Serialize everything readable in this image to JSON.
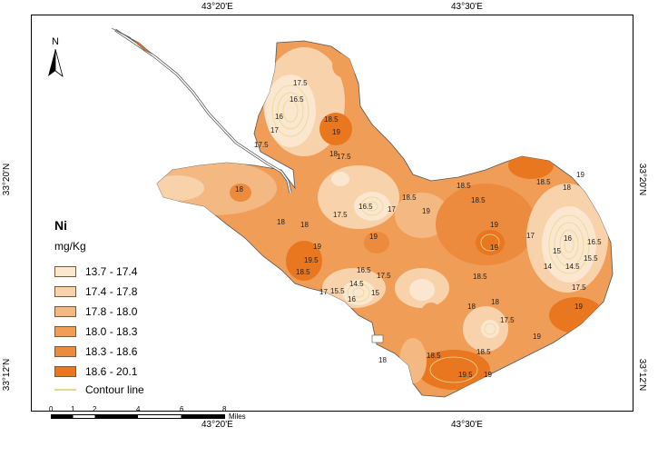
{
  "coords": {
    "top": [
      "43°20'E",
      "43°30'E"
    ],
    "bottom": [
      "43°20'E",
      "43°30'E"
    ],
    "left": [
      "33°20'N",
      "33°12'N"
    ],
    "right": [
      "33°20'N",
      "33°12'N"
    ]
  },
  "north_arrow": {
    "label": "N",
    "icon": "north-arrow-icon"
  },
  "legend": {
    "title": "Ni",
    "unit": "mg/Kg",
    "classes": [
      {
        "label": "13.7 - 17.4",
        "color": "#fbe6cf"
      },
      {
        "label": "17.4 - 17.8",
        "color": "#f8d2aa"
      },
      {
        "label": "17.8 - 18.0",
        "color": "#f4b983"
      },
      {
        "label": "18.0 - 18.3",
        "color": "#f09d58"
      },
      {
        "label": "18.3 - 18.6",
        "color": "#ec8a3d"
      },
      {
        "label": "18.6 - 20.1",
        "color": "#e8771f"
      }
    ],
    "contour_label": "Contour line",
    "contour_color": "#e8d98a"
  },
  "scale_bar": {
    "ticks": [
      "0",
      "1",
      "2",
      "4",
      "6",
      "8"
    ],
    "unit": "Miles"
  },
  "contour_labels": [
    "17.5",
    "16.5",
    "16",
    "17",
    "17.5",
    "18.5",
    "19",
    "18",
    "17.5",
    "16.5",
    "17",
    "17.5",
    "18.5",
    "19",
    "18.5",
    "19",
    "18",
    "18",
    "18",
    "19",
    "19.5",
    "18.5",
    "19",
    "17.5",
    "16.5",
    "14.5",
    "15",
    "17",
    "15.5",
    "16",
    "18.5",
    "18",
    "17.5",
    "18.5",
    "19",
    "18",
    "16",
    "16.5",
    "17",
    "14",
    "15",
    "14.5",
    "15.5",
    "17.5",
    "19",
    "18.5",
    "19.5",
    "19",
    "18",
    "18.5",
    "19",
    "18.5",
    "19",
    "18"
  ]
}
